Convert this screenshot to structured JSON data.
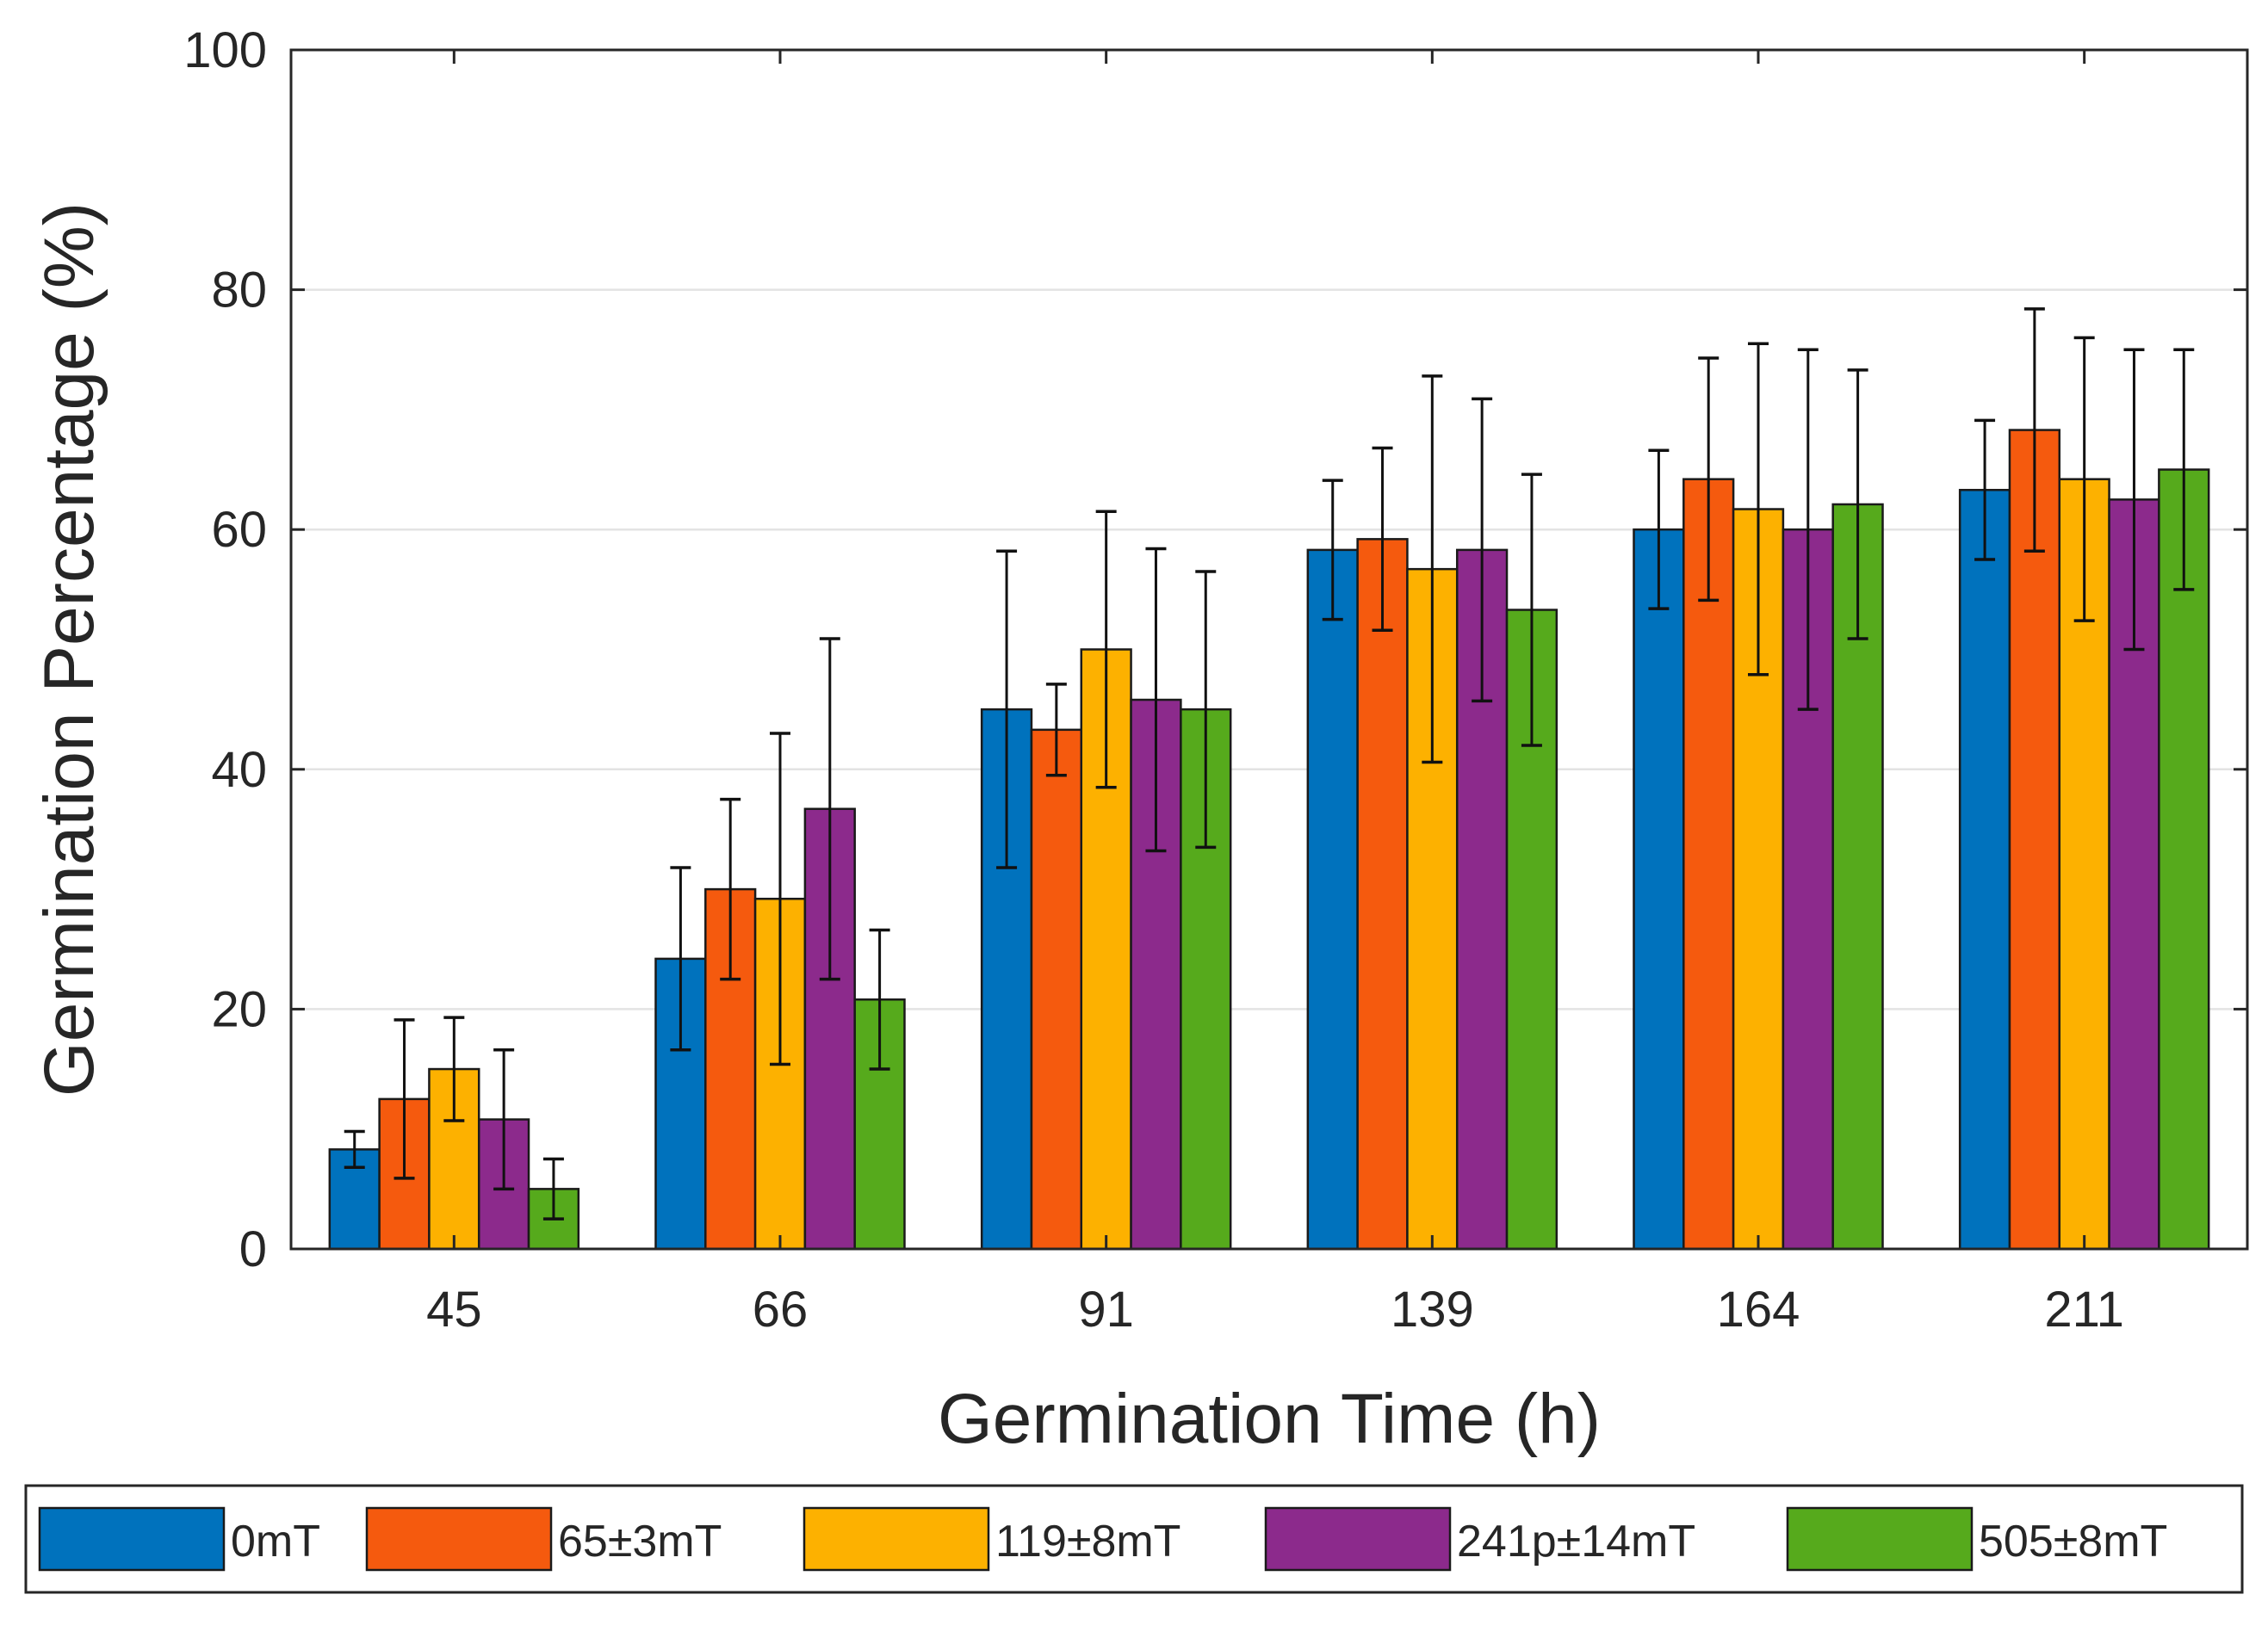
{
  "chart_data": {
    "type": "bar",
    "title": "",
    "xlabel": "Germination Time (h)",
    "ylabel": "Germination Percentage (%)",
    "ylim": [
      0,
      100
    ],
    "yticks": [
      "0",
      "20",
      "40",
      "60",
      "80",
      "100"
    ],
    "grid": "horizontal",
    "legend_position": "bottom",
    "categories": [
      "45",
      "66",
      "91",
      "139",
      "164",
      "211"
    ],
    "series": [
      {
        "name": "0mT",
        "color": "#0072BD",
        "values": [
          8.3,
          24.2,
          45.0,
          58.3,
          60.0,
          63.3
        ],
        "errors": [
          1.5,
          7.6,
          13.2,
          5.8,
          6.6,
          5.8
        ]
      },
      {
        "name": "65±3mT",
        "color": "#F55A0E",
        "values": [
          12.5,
          30.0,
          43.3,
          59.2,
          64.2,
          68.3
        ],
        "errors": [
          6.6,
          7.5,
          3.8,
          7.6,
          10.1,
          10.1
        ]
      },
      {
        "name": "119±8mT",
        "color": "#FDB100",
        "values": [
          15.0,
          29.2,
          50.0,
          56.7,
          61.7,
          64.2
        ],
        "errors": [
          4.3,
          13.8,
          11.5,
          16.1,
          13.8,
          11.8
        ]
      },
      {
        "name": "241p±14mT",
        "color": "#8C2A8C",
        "values": [
          10.8,
          36.7,
          45.8,
          58.3,
          60.0,
          62.5
        ],
        "errors": [
          5.8,
          14.2,
          12.6,
          12.6,
          15.0,
          12.5
        ]
      },
      {
        "name": "505±8mT",
        "color": "#56AA1C",
        "values": [
          5.0,
          20.8,
          45.0,
          53.3,
          62.1,
          65.0
        ],
        "errors": [
          2.5,
          5.8,
          11.5,
          11.3,
          11.2,
          10.0
        ]
      }
    ]
  }
}
